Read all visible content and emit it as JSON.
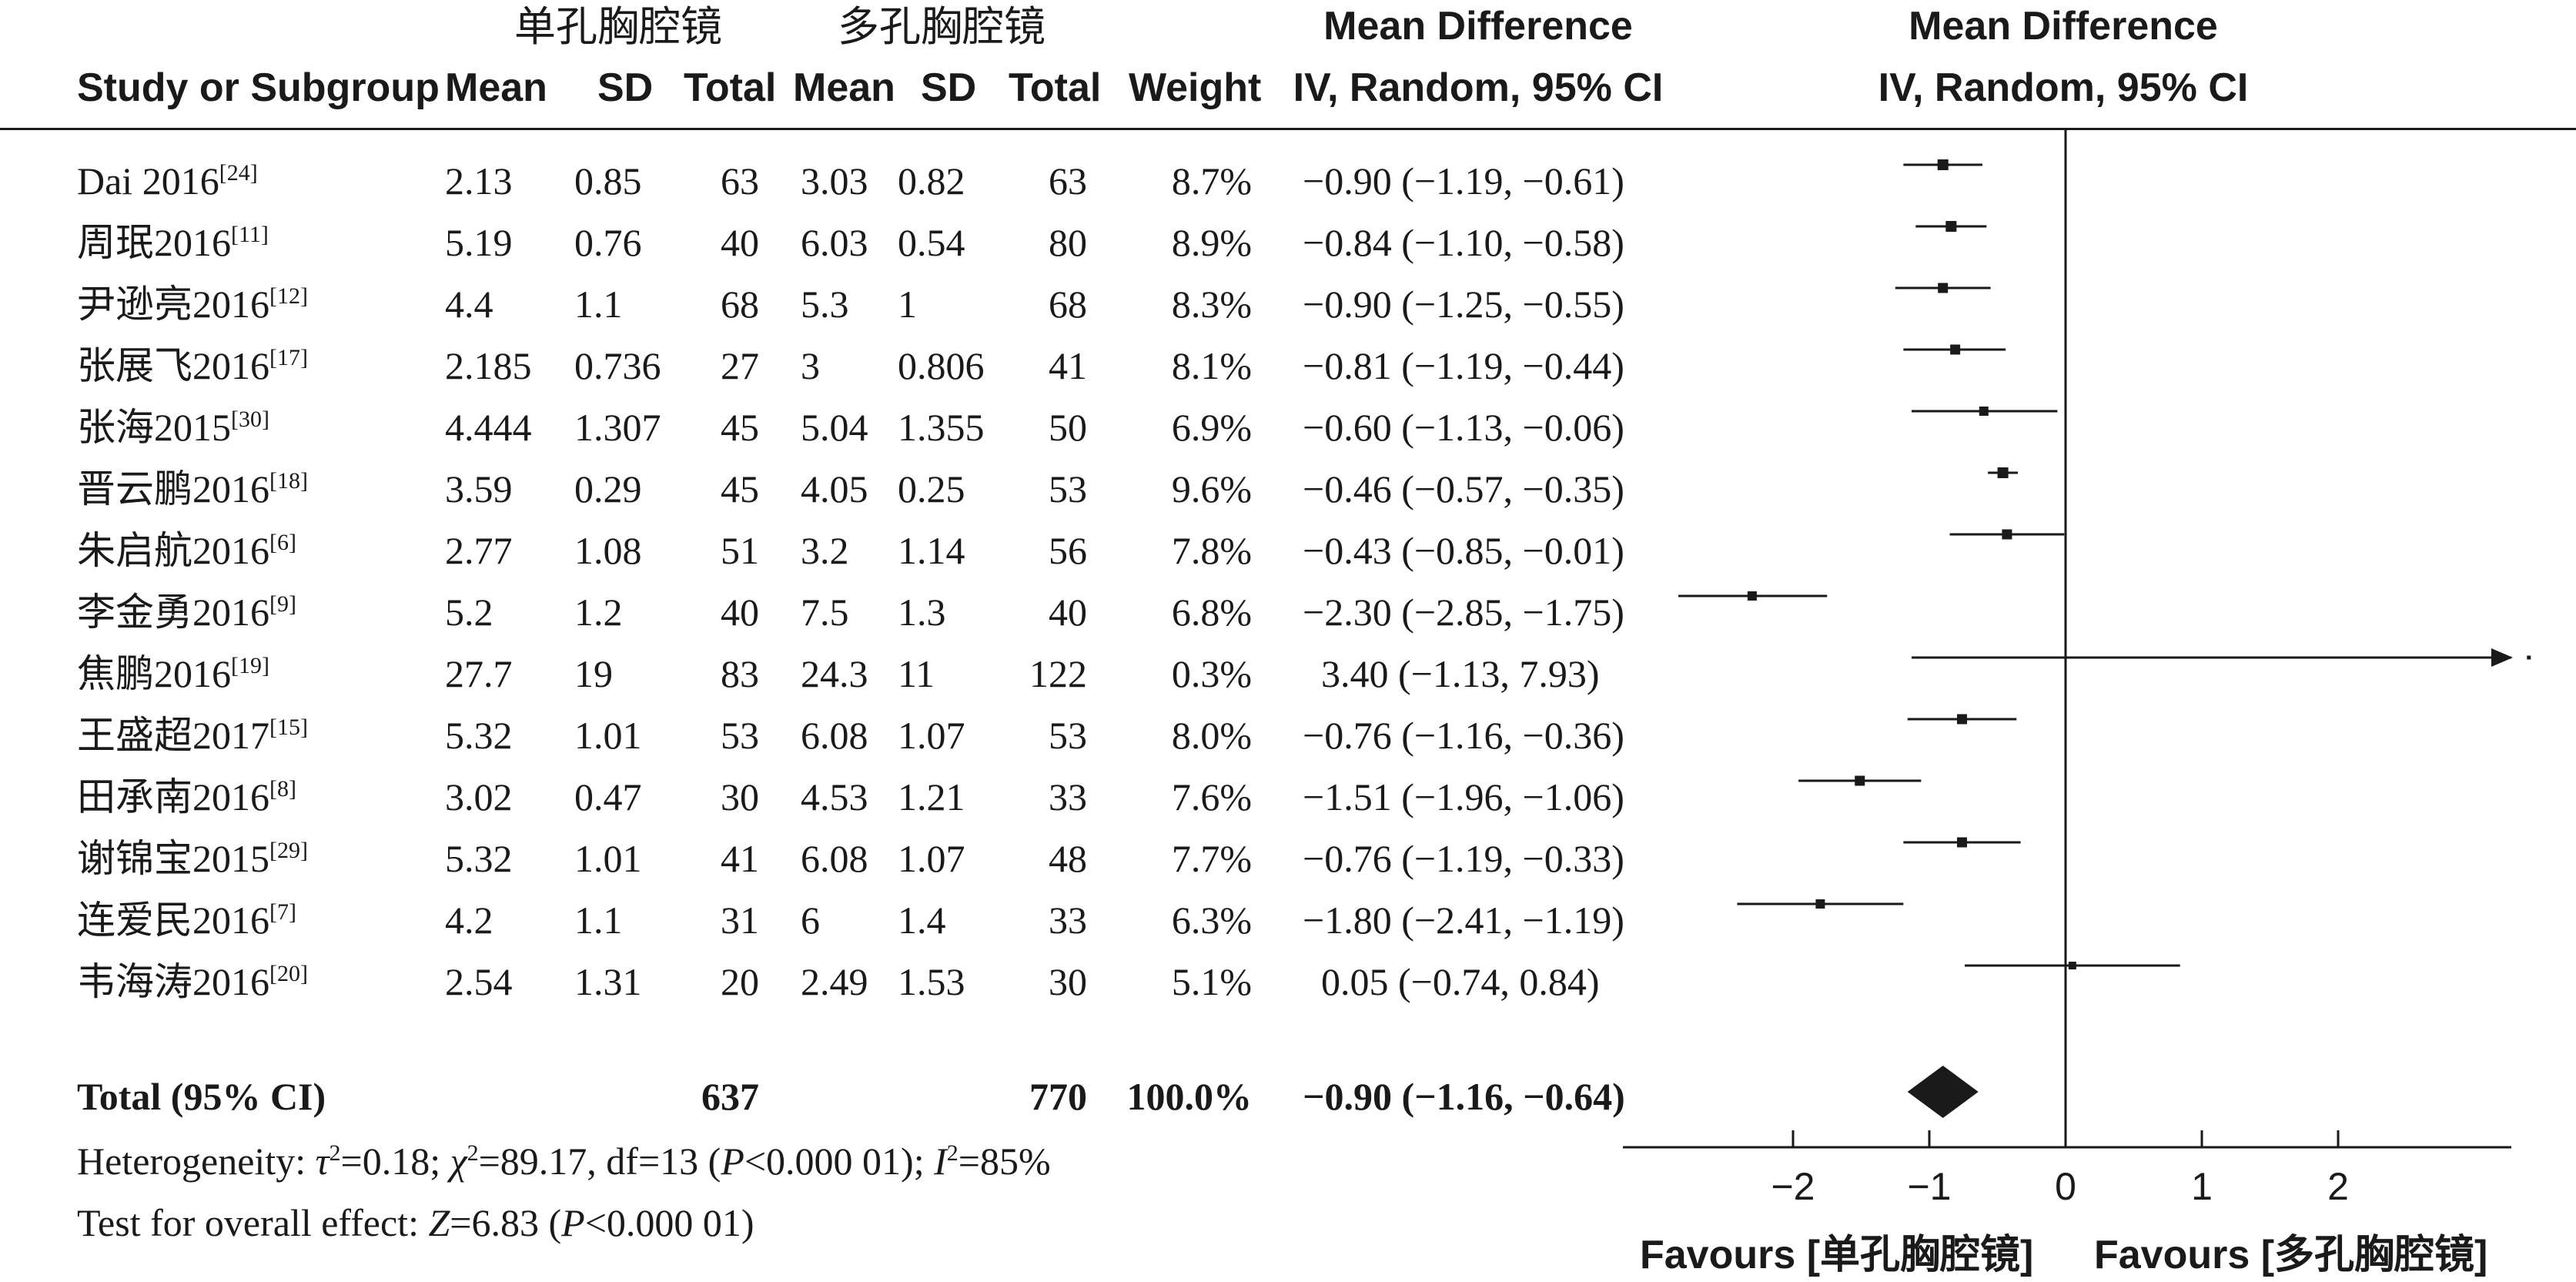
{
  "group_labels": {
    "single": "单孔胸腔镜",
    "multi": "多孔胸腔镜"
  },
  "headers": {
    "study": "Study or Subgroup",
    "mean1": "Mean",
    "sd1": "SD",
    "total1": "Total",
    "mean2": "Mean",
    "sd2": "SD",
    "total2": "Total",
    "weight": "Weight",
    "md_title": "Mean Difference",
    "md_method": "IV, Random, 95% CI",
    "plot_title": "Mean Difference",
    "plot_method": "IV, Random, 95% CI"
  },
  "studies": [
    {
      "name": "Dai 2016",
      "ref": "[24]",
      "mean1": "2.13",
      "sd1": "0.85",
      "n1": "63",
      "mean2": "3.03",
      "sd2": "0.82",
      "n2": "63",
      "weight": "8.7%",
      "ci": "−0.90 (−1.19, −0.61)"
    },
    {
      "name": "周珉2016",
      "ref": "[11]",
      "mean1": "5.19",
      "sd1": "0.76",
      "n1": "40",
      "mean2": "6.03",
      "sd2": "0.54",
      "n2": "80",
      "weight": "8.9%",
      "ci": "−0.84 (−1.10, −0.58)"
    },
    {
      "name": "尹逊亮2016",
      "ref": "[12]",
      "mean1": "4.4",
      "sd1": "1.1",
      "n1": "68",
      "mean2": "5.3",
      "sd2": "1",
      "n2": "68",
      "weight": "8.3%",
      "ci": "−0.90 (−1.25, −0.55)"
    },
    {
      "name": "张展飞2016",
      "ref": "[17]",
      "mean1": "2.185",
      "sd1": "0.736",
      "n1": "27",
      "mean2": "3",
      "sd2": "0.806",
      "n2": "41",
      "weight": "8.1%",
      "ci": "−0.81 (−1.19, −0.44)"
    },
    {
      "name": "张海2015",
      "ref": "[30]",
      "mean1": "4.444",
      "sd1": "1.307",
      "n1": "45",
      "mean2": "5.04",
      "sd2": "1.355",
      "n2": "50",
      "weight": "6.9%",
      "ci": "−0.60 (−1.13, −0.06)"
    },
    {
      "name": "晋云鹏2016",
      "ref": "[18]",
      "mean1": "3.59",
      "sd1": "0.29",
      "n1": "45",
      "mean2": "4.05",
      "sd2": "0.25",
      "n2": "53",
      "weight": "9.6%",
      "ci": "−0.46 (−0.57, −0.35)"
    },
    {
      "name": "朱启航2016",
      "ref": "[6]",
      "mean1": "2.77",
      "sd1": "1.08",
      "n1": "51",
      "mean2": "3.2",
      "sd2": "1.14",
      "n2": "56",
      "weight": "7.8%",
      "ci": "−0.43 (−0.85, −0.01)"
    },
    {
      "name": "李金勇2016",
      "ref": "[9]",
      "mean1": "5.2",
      "sd1": "1.2",
      "n1": "40",
      "mean2": "7.5",
      "sd2": "1.3",
      "n2": "40",
      "weight": "6.8%",
      "ci": "−2.30 (−2.85, −1.75)"
    },
    {
      "name": "焦鹏2016",
      "ref": "[19]",
      "mean1": "27.7",
      "sd1": "19",
      "n1": "83",
      "mean2": "24.3",
      "sd2": "11",
      "n2": "122",
      "weight": "0.3%",
      "ci": "3.40 (−1.13, 7.93)"
    },
    {
      "name": "王盛超2017",
      "ref": "[15]",
      "mean1": "5.32",
      "sd1": "1.01",
      "n1": "53",
      "mean2": "6.08",
      "sd2": "1.07",
      "n2": "53",
      "weight": "8.0%",
      "ci": "−0.76 (−1.16, −0.36)"
    },
    {
      "name": "田承南2016",
      "ref": "[8]",
      "mean1": "3.02",
      "sd1": "0.47",
      "n1": "30",
      "mean2": "4.53",
      "sd2": "1.21",
      "n2": "33",
      "weight": "7.6%",
      "ci": "−1.51 (−1.96, −1.06)"
    },
    {
      "name": "谢锦宝2015",
      "ref": "[29]",
      "mean1": "5.32",
      "sd1": "1.01",
      "n1": "41",
      "mean2": "6.08",
      "sd2": "1.07",
      "n2": "48",
      "weight": "7.7%",
      "ci": "−0.76 (−1.19, −0.33)"
    },
    {
      "name": "连爱民2016",
      "ref": "[7]",
      "mean1": "4.2",
      "sd1": "1.1",
      "n1": "31",
      "mean2": "6",
      "sd2": "1.4",
      "n2": "33",
      "weight": "6.3%",
      "ci": "−1.80 (−2.41, −1.19)"
    },
    {
      "name": "韦海涛2016",
      "ref": "[20]",
      "mean1": "2.54",
      "sd1": "1.31",
      "n1": "20",
      "mean2": "2.49",
      "sd2": "1.53",
      "n2": "30",
      "weight": "5.1%",
      "ci": "0.05 (−0.74, 0.84)"
    }
  ],
  "total": {
    "label": "Total (95% CI)",
    "n1": "637",
    "n2": "770",
    "weight": "100.0%",
    "ci": "−0.90 (−1.16, −0.64)"
  },
  "heterogeneity": {
    "prefix": "Heterogeneity: ",
    "tau": "τ",
    "tau_val": "=0.18; ",
    "chi": "χ",
    "chi_val": "=89.17, df=13 (",
    "p": "P",
    "p_val": "<0.000 01); ",
    "i": "I",
    "i_val": "=85%"
  },
  "overall": {
    "prefix": "Test for overall effect: ",
    "z": "Z",
    "z_val": "=6.83 (",
    "p": "P",
    "p_val": "<0.000 01)"
  },
  "favours": {
    "left": "Favours [单孔胸腔镜]",
    "right": "Favours [多孔胸腔镜]"
  },
  "chart_data": {
    "type": "forest",
    "title": "Mean Difference",
    "xlabel": "IV, Random, 95% CI",
    "xlim": [
      -3.2,
      3.2
    ],
    "xticks": [
      -2,
      -1,
      0,
      1,
      2
    ],
    "xtick_labels": [
      "−2",
      "−1",
      "0",
      "1",
      "2"
    ],
    "series": [
      {
        "study": "Dai 2016",
        "md": -0.9,
        "lo": -1.19,
        "hi": -0.61,
        "weight": 8.7
      },
      {
        "study": "周珉2016",
        "md": -0.84,
        "lo": -1.1,
        "hi": -0.58,
        "weight": 8.9
      },
      {
        "study": "尹逊亮2016",
        "md": -0.9,
        "lo": -1.25,
        "hi": -0.55,
        "weight": 8.3
      },
      {
        "study": "张展飞2016",
        "md": -0.81,
        "lo": -1.19,
        "hi": -0.44,
        "weight": 8.1
      },
      {
        "study": "张海2015",
        "md": -0.6,
        "lo": -1.13,
        "hi": -0.06,
        "weight": 6.9
      },
      {
        "study": "晋云鹏2016",
        "md": -0.46,
        "lo": -0.57,
        "hi": -0.35,
        "weight": 9.6
      },
      {
        "study": "朱启航2016",
        "md": -0.43,
        "lo": -0.85,
        "hi": -0.01,
        "weight": 7.8
      },
      {
        "study": "李金勇2016",
        "md": -2.3,
        "lo": -2.85,
        "hi": -1.75,
        "weight": 6.8
      },
      {
        "study": "焦鹏2016",
        "md": 3.4,
        "lo": -1.13,
        "hi": 7.93,
        "weight": 0.3
      },
      {
        "study": "王盛超2017",
        "md": -0.76,
        "lo": -1.16,
        "hi": -0.36,
        "weight": 8.0
      },
      {
        "study": "田承南2016",
        "md": -1.51,
        "lo": -1.96,
        "hi": -1.06,
        "weight": 7.6
      },
      {
        "study": "谢锦宝2015",
        "md": -0.76,
        "lo": -1.19,
        "hi": -0.33,
        "weight": 7.7
      },
      {
        "study": "连爱民2016",
        "md": -1.8,
        "lo": -2.41,
        "hi": -1.19,
        "weight": 6.3
      },
      {
        "study": "韦海涛2016",
        "md": 0.05,
        "lo": -0.74,
        "hi": 0.84,
        "weight": 5.1
      }
    ],
    "overall": {
      "md": -0.9,
      "lo": -1.16,
      "hi": -0.64
    }
  }
}
